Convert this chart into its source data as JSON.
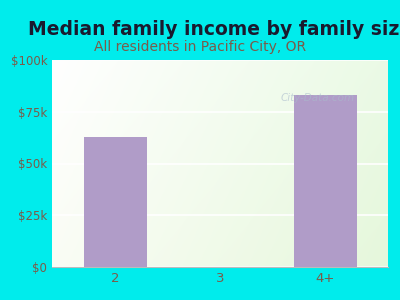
{
  "title": "Median family income by family size",
  "subtitle": "All residents in Pacific City, OR",
  "categories": [
    "2",
    "3",
    "4+"
  ],
  "values": [
    63000,
    0,
    83000
  ],
  "bar_color": "#b09cc8",
  "background_color": "#00ecec",
  "title_color": "#1a1a2e",
  "subtitle_color": "#7a5c4a",
  "axis_label_color": "#7a5c4a",
  "ytick_labels": [
    "$0",
    "$25k",
    "$50k",
    "$75k",
    "$100k"
  ],
  "ytick_values": [
    0,
    25000,
    50000,
    75000,
    100000
  ],
  "ylim": [
    0,
    100000
  ],
  "watermark": "City-Data.com",
  "title_fontsize": 13.5,
  "subtitle_fontsize": 10
}
